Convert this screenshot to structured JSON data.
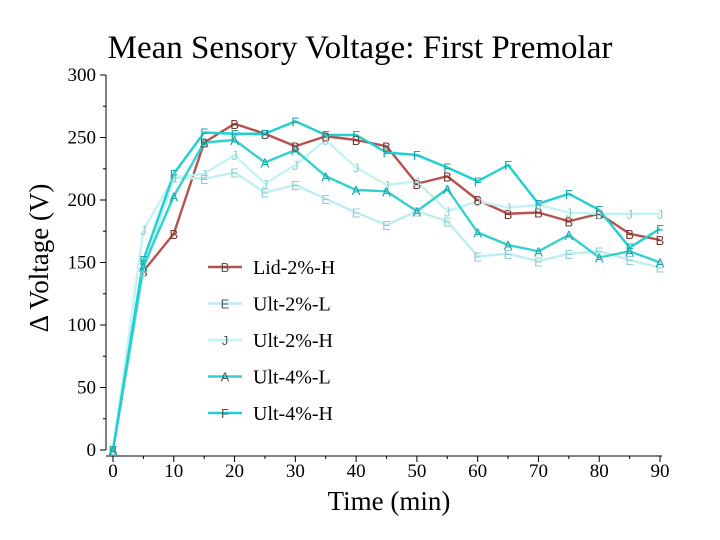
{
  "chart_data": {
    "type": "line",
    "title": "Mean Sensory Voltage: First Premolar",
    "xlabel": "Time (min)",
    "ylabel": "Δ Voltage (V)",
    "xlim": [
      0,
      90
    ],
    "ylim": [
      0,
      300
    ],
    "x_ticks": [
      0,
      10,
      20,
      30,
      40,
      50,
      60,
      70,
      80,
      90
    ],
    "y_ticks": [
      0,
      50,
      100,
      150,
      200,
      250,
      300
    ],
    "x_tick_labels": [
      "0",
      "10",
      "20",
      "30",
      "40",
      "50",
      "60",
      "70",
      "80",
      "90"
    ],
    "y_tick_labels": [
      "0",
      "50",
      "100",
      "150",
      "200",
      "250",
      "300"
    ],
    "legend_position": "center",
    "x": [
      0,
      5,
      10,
      15,
      20,
      25,
      30,
      35,
      40,
      45,
      50,
      55,
      60,
      65,
      70,
      75,
      80,
      85,
      90
    ],
    "series": [
      {
        "name": "Lid-2%-H",
        "marker": "B",
        "color": "#b5524e",
        "values": [
          0,
          143,
          173,
          246,
          261,
          253,
          243,
          251,
          248,
          243,
          213,
          219,
          200,
          189,
          190,
          183,
          189,
          173,
          168
        ]
      },
      {
        "name": "Ult-2%-L",
        "marker": "E",
        "color": "#bfeeee",
        "values": [
          0,
          143,
          218,
          217,
          222,
          206,
          212,
          201,
          190,
          180,
          191,
          183,
          155,
          157,
          151,
          157,
          159,
          152,
          146
        ]
      },
      {
        "name": "Ult-2%-H",
        "marker": "J",
        "color": "#c2f3f3",
        "values": [
          0,
          176,
          218,
          221,
          236,
          213,
          228,
          248,
          226,
          212,
          215,
          191,
          199,
          194,
          196,
          190,
          189,
          189,
          189
        ]
      },
      {
        "name": "Ult-4%-L",
        "marker": "A",
        "color": "#33d0d0",
        "values": [
          0,
          147,
          203,
          246,
          248,
          230,
          240,
          219,
          208,
          207,
          191,
          209,
          174,
          164,
          159,
          172,
          154,
          159,
          150
        ]
      },
      {
        "name": "Ult-4%-H",
        "marker": "F",
        "color": "#1ed0d4",
        "values": [
          0,
          152,
          221,
          254,
          253,
          253,
          263,
          252,
          252,
          238,
          236,
          226,
          215,
          228,
          197,
          205,
          192,
          162,
          177
        ]
      }
    ]
  }
}
